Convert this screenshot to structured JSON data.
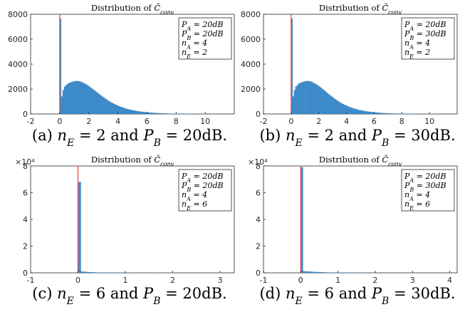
{
  "chart_data": [
    {
      "type": "bar",
      "title": "Distribution of C̄conv",
      "title_main": "Distribution of ",
      "title_sym": "C̄",
      "title_sub": "conv",
      "xlim": [
        -2,
        12
      ],
      "ylim": [
        0,
        8000
      ],
      "xticks": [
        "-2",
        "0",
        "2",
        "4",
        "6",
        "8",
        "10"
      ],
      "yticks": [
        "0",
        "2000",
        "4000",
        "6000",
        "8000"
      ],
      "y_exponent": "",
      "marker_x": 0,
      "marker_color": "#e8494a",
      "bar_color": "#3f8fcf",
      "spike": {
        "x": 0,
        "value": 7650
      },
      "bins": {
        "start": 0,
        "width": 0.1
      },
      "values": [
        600,
        1400,
        1900,
        2180,
        2300,
        2420,
        2470,
        2520,
        2560,
        2600,
        2620,
        2640,
        2630,
        2610,
        2580,
        2530,
        2480,
        2420,
        2350,
        2280,
        2200,
        2110,
        2020,
        1930,
        1840,
        1750,
        1650,
        1560,
        1470,
        1380,
        1300,
        1220,
        1140,
        1060,
        990,
        920,
        860,
        800,
        740,
        690,
        640,
        590,
        550,
        510,
        470,
        430,
        400,
        370,
        340,
        310,
        290,
        265,
        245,
        225,
        205,
        190,
        175,
        160,
        145,
        135,
        122,
        112,
        102,
        93,
        85,
        77,
        70,
        63,
        57,
        52,
        47,
        42,
        38,
        34,
        31,
        28,
        25,
        22,
        20,
        18,
        16,
        14,
        12,
        11,
        10,
        9,
        8,
        7,
        6,
        5,
        5,
        4,
        4,
        3,
        3,
        2,
        2,
        2,
        1,
        1,
        1,
        1,
        1,
        1,
        1,
        1,
        1
      ],
      "legend": [
        "P_A = 20dB",
        "P_B = 20dB",
        "n_A = 4",
        "n_E = 2"
      ],
      "caption": {
        "label": "(a)",
        "text": "n_E = 2 and P_B = 20dB."
      }
    },
    {
      "type": "bar",
      "title": "Distribution of C̄conv",
      "title_main": "Distribution of ",
      "title_sym": "C̄",
      "title_sub": "conv",
      "xlim": [
        -2,
        12
      ],
      "ylim": [
        0,
        8000
      ],
      "xticks": [
        "-2",
        "0",
        "2",
        "4",
        "6",
        "8",
        "10"
      ],
      "yticks": [
        "0",
        "2000",
        "4000",
        "6000",
        "8000"
      ],
      "y_exponent": "",
      "marker_x": 0,
      "marker_color": "#e8494a",
      "bar_color": "#3f8fcf",
      "spike": {
        "x": 0,
        "value": 7650
      },
      "bins": {
        "start": 0,
        "width": 0.1
      },
      "values": [
        600,
        1400,
        1900,
        2180,
        2300,
        2420,
        2470,
        2520,
        2560,
        2600,
        2620,
        2640,
        2630,
        2610,
        2580,
        2530,
        2480,
        2420,
        2350,
        2280,
        2200,
        2110,
        2020,
        1930,
        1840,
        1750,
        1650,
        1560,
        1470,
        1380,
        1300,
        1220,
        1140,
        1060,
        990,
        920,
        860,
        800,
        740,
        690,
        640,
        590,
        550,
        510,
        470,
        430,
        400,
        370,
        340,
        310,
        290,
        265,
        245,
        225,
        205,
        190,
        175,
        160,
        145,
        135,
        122,
        112,
        102,
        93,
        85,
        77,
        70,
        63,
        57,
        52,
        47,
        42,
        38,
        34,
        31,
        28,
        25,
        22,
        20,
        18,
        16,
        14,
        12,
        11,
        10,
        9,
        8,
        7,
        6,
        5,
        5,
        4,
        4,
        3,
        3,
        2,
        2,
        2,
        1,
        1,
        1,
        1,
        1,
        1,
        1,
        1,
        1
      ],
      "legend": [
        "P_A = 20dB",
        "P_B = 30dB",
        "n_A = 4",
        "n_E = 2"
      ],
      "caption": {
        "label": "(b)",
        "text": "n_E = 2 and P_B = 30dB."
      }
    },
    {
      "type": "bar",
      "title": "Distribution of C̄conv",
      "title_main": "Distribution of ",
      "title_sym": "C̄",
      "title_sub": "conv",
      "xlim": [
        -1,
        3.3
      ],
      "ylim": [
        0,
        80000
      ],
      "xticks": [
        "-1",
        "0",
        "1",
        "2",
        "3"
      ],
      "yticks": [
        "0",
        "2",
        "4",
        "6",
        "8"
      ],
      "y_exponent": "×10⁴",
      "marker_x": 0,
      "marker_color": "#e8494a",
      "bar_color": "#3f8fcf",
      "spike": {
        "x": 0,
        "value": 68000
      },
      "bins": {
        "start": 0.02,
        "width": 0.04
      },
      "values": [
        1500,
        900,
        750,
        650,
        560,
        480,
        410,
        350,
        300,
        260,
        220,
        190,
        160,
        140,
        120,
        100,
        85,
        72,
        60,
        50,
        42,
        35,
        29,
        24,
        20,
        16,
        13,
        11,
        9,
        7,
        6,
        5,
        4,
        3,
        3,
        2,
        2,
        2,
        1,
        1,
        1,
        1,
        1,
        1,
        1,
        1,
        1,
        1,
        1,
        1,
        1,
        1
      ],
      "legend": [
        "P_A = 20dB",
        "P_B = 20dB",
        "n_A = 4",
        "n_E = 6"
      ],
      "caption": {
        "label": "(c)",
        "text": "n_E = 6 and P_B = 20dB."
      }
    },
    {
      "type": "bar",
      "title": "Distribution of C̄conv",
      "title_main": "Distribution of ",
      "title_sym": "C̄",
      "title_sub": "conv",
      "xlim": [
        -1,
        4.2
      ],
      "ylim": [
        0,
        80000
      ],
      "xticks": [
        "-1",
        "0",
        "1",
        "2",
        "3",
        "4"
      ],
      "yticks": [
        "0",
        "2",
        "4",
        "6",
        "8"
      ],
      "y_exponent": "×10⁴",
      "marker_x": 0,
      "marker_color": "#e8494a",
      "bar_color": "#3f8fcf",
      "spike": {
        "x": 0,
        "value": 79000
      },
      "bins": {
        "start": 0.02,
        "width": 0.04
      },
      "values": [
        1600,
        1200,
        1050,
        980,
        920,
        860,
        800,
        740,
        680,
        620,
        560,
        510,
        460,
        410,
        370,
        330,
        300,
        270,
        240,
        210,
        185,
        165,
        145,
        128,
        112,
        98,
        86,
        75,
        65,
        56,
        48,
        41,
        35,
        30,
        26,
        22,
        19,
        16,
        14,
        12,
        10,
        9,
        8,
        7,
        6,
        5,
        4,
        4,
        3,
        3,
        2,
        2,
        2,
        2,
        1,
        1,
        1,
        1,
        1,
        1,
        1,
        1,
        1,
        1,
        1
      ],
      "legend": [
        "P_A = 20dB",
        "P_B = 30dB",
        "n_A = 4",
        "n_E = 6"
      ],
      "caption": {
        "label": "(d)",
        "text": "n_E = 6 and P_B = 30dB."
      }
    }
  ]
}
